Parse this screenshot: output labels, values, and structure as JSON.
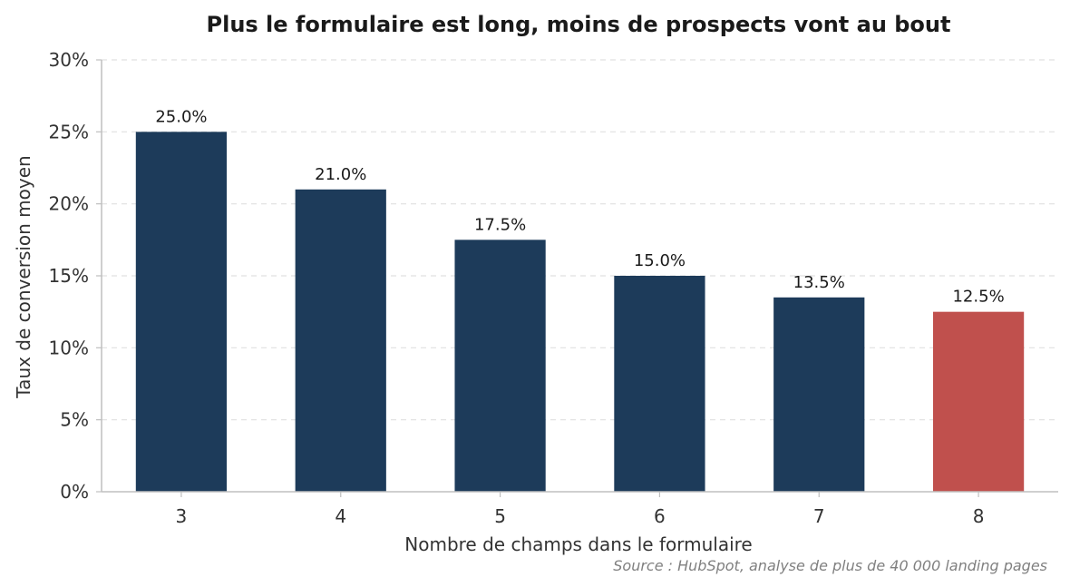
{
  "chart_data": {
    "type": "bar",
    "title": "Plus le formulaire est long, moins de prospects vont au bout",
    "xlabel": "Nombre de champs dans le formulaire",
    "ylabel": "Taux de conversion moyen",
    "categories": [
      "3",
      "4",
      "5",
      "6",
      "7",
      "8"
    ],
    "values": [
      25.0,
      21.0,
      17.5,
      15.0,
      13.5,
      12.5
    ],
    "value_labels": [
      "25.0%",
      "21.0%",
      "17.5%",
      "15.0%",
      "13.5%",
      "12.5%"
    ],
    "ylim": [
      0,
      30
    ],
    "yticks": [
      0,
      5,
      10,
      15,
      20,
      25,
      30
    ],
    "ytick_labels": [
      "0%",
      "5%",
      "10%",
      "15%",
      "20%",
      "25%",
      "30%"
    ],
    "grid": "y-dashed",
    "colors": {
      "bar": "#1d3b5a",
      "highlight": "#c0504d",
      "highlight_index": 5,
      "grid": "#e0e0e0",
      "axis": "#bfbfbf"
    },
    "source": "Source : HubSpot, analyse de plus de 40 000 landing pages"
  }
}
